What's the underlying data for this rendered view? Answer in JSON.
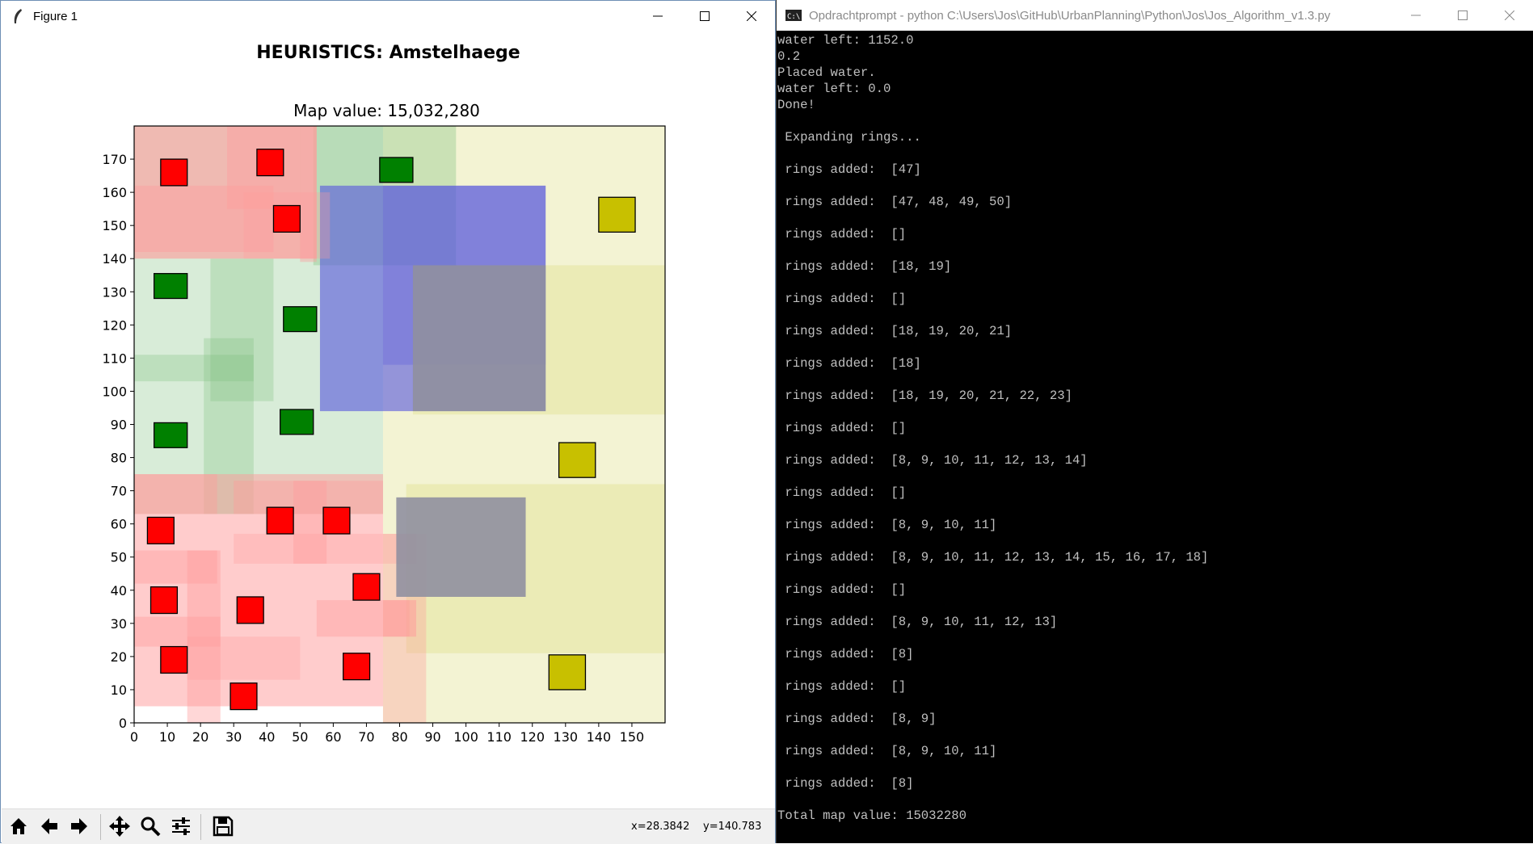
{
  "figure_window": {
    "title": "Figure 1",
    "suptitle": "HEURISTICS: Amstelhaege",
    "axes_title": "Map value: 15,032,280",
    "coords": {
      "x": "x=28.3842",
      "y": "y=140.783"
    },
    "toolbar": {
      "home_icon": "home-icon",
      "back_icon": "arrow-left-icon",
      "forward_icon": "arrow-right-icon",
      "pan_icon": "move-icon",
      "zoom_icon": "magnifier-icon",
      "config_icon": "sliders-icon",
      "save_icon": "floppy-disk-icon"
    }
  },
  "chart_data": {
    "type": "map",
    "xlim": [
      0,
      160
    ],
    "ylim": [
      0,
      180
    ],
    "xticks": [
      0,
      10,
      20,
      30,
      40,
      50,
      60,
      70,
      80,
      90,
      100,
      110,
      120,
      130,
      140,
      150
    ],
    "yticks": [
      0,
      10,
      20,
      30,
      40,
      50,
      60,
      70,
      80,
      90,
      100,
      110,
      120,
      130,
      140,
      150,
      160,
      170
    ],
    "colors": {
      "house_small": "#ff0000",
      "house_medium": "#008000",
      "house_large": "#c8c000",
      "water": "#9090a0",
      "ring_red": "#ff9a9a",
      "ring_green": "#7fc07f",
      "ring_yellow": "#dcdc80",
      "ring_blue": "#5555dd"
    },
    "rings": [
      {
        "color": "ring_yellow",
        "x": 75,
        "y": 0,
        "w": 85,
        "h": 180,
        "alpha": 0.35
      },
      {
        "color": "ring_yellow",
        "x": 82,
        "y": 21,
        "w": 78,
        "h": 51,
        "alpha": 0.35
      },
      {
        "color": "ring_yellow",
        "x": 84,
        "y": 93,
        "w": 76,
        "h": 45,
        "alpha": 0.35
      },
      {
        "color": "ring_green",
        "x": 0,
        "y": 63,
        "w": 75,
        "h": 117,
        "alpha": 0.3
      },
      {
        "color": "ring_green",
        "x": 54,
        "y": 138,
        "w": 43,
        "h": 42,
        "alpha": 0.35
      },
      {
        "color": "ring_green",
        "x": 21,
        "y": 63,
        "w": 15,
        "h": 53,
        "alpha": 0.3
      },
      {
        "color": "ring_green",
        "x": 0,
        "y": 103,
        "w": 36,
        "h": 8,
        "alpha": 0.3
      },
      {
        "color": "ring_green",
        "x": 23,
        "y": 97,
        "w": 19,
        "h": 43,
        "alpha": 0.3
      },
      {
        "color": "ring_blue",
        "x": 56,
        "y": 94,
        "w": 68,
        "h": 68,
        "alpha": 0.6
      },
      {
        "color": "ring_blue",
        "x": 75,
        "y": 108,
        "w": 49,
        "h": 54,
        "alpha": 0.3
      },
      {
        "color": "ring_red",
        "x": 0,
        "y": 140,
        "w": 55,
        "h": 40,
        "alpha": 0.6
      },
      {
        "color": "ring_red",
        "x": 0,
        "y": 5,
        "w": 75,
        "h": 70,
        "alpha": 0.5
      },
      {
        "color": "ring_red",
        "x": 28,
        "y": 155,
        "w": 22,
        "h": 25,
        "alpha": 0.4
      },
      {
        "color": "ring_red",
        "x": 50,
        "y": 139,
        "w": 5,
        "h": 41,
        "alpha": 0.4
      },
      {
        "color": "ring_red",
        "x": 0,
        "y": 142,
        "w": 42,
        "h": 20,
        "alpha": 0.4
      },
      {
        "color": "ring_red",
        "x": 33,
        "y": 140,
        "w": 26,
        "h": 20,
        "alpha": 0.3
      },
      {
        "color": "ring_red",
        "x": 0,
        "y": 63,
        "w": 25,
        "h": 12,
        "alpha": 0.4
      },
      {
        "color": "ring_red",
        "x": 30,
        "y": 63,
        "w": 45,
        "h": 10,
        "alpha": 0.4
      },
      {
        "color": "ring_red",
        "x": 48,
        "y": 48,
        "w": 10,
        "h": 25,
        "alpha": 0.4
      },
      {
        "color": "ring_red",
        "x": 0,
        "y": 42,
        "w": 25,
        "h": 10,
        "alpha": 0.4
      },
      {
        "color": "ring_red",
        "x": 16,
        "y": 0,
        "w": 10,
        "h": 52,
        "alpha": 0.4
      },
      {
        "color": "ring_red",
        "x": 0,
        "y": 23,
        "w": 26,
        "h": 9,
        "alpha": 0.4
      },
      {
        "color": "ring_red",
        "x": 16,
        "y": 13,
        "w": 34,
        "h": 13,
        "alpha": 0.3
      },
      {
        "color": "ring_red",
        "x": 55,
        "y": 26,
        "w": 28,
        "h": 11,
        "alpha": 0.4
      },
      {
        "color": "ring_red",
        "x": 30,
        "y": 48,
        "w": 55,
        "h": 9,
        "alpha": 0.3
      },
      {
        "color": "ring_red",
        "x": 75,
        "y": 0,
        "w": 13,
        "h": 57,
        "alpha": 0.35
      },
      {
        "color": "ring_red",
        "x": 75,
        "y": 26,
        "w": 10,
        "h": 11,
        "alpha": 0.5
      }
    ],
    "water": [
      {
        "x": 84,
        "y": 94,
        "w": 40,
        "h": 44
      },
      {
        "x": 79,
        "y": 38,
        "w": 39,
        "h": 30
      }
    ],
    "houses": [
      {
        "type": "house_small",
        "x": 8,
        "y": 162,
        "w": 8,
        "h": 8
      },
      {
        "type": "house_small",
        "x": 37,
        "y": 165,
        "w": 8,
        "h": 8
      },
      {
        "type": "house_small",
        "x": 42,
        "y": 148,
        "w": 8,
        "h": 8
      },
      {
        "type": "house_small",
        "x": 4,
        "y": 54,
        "w": 8,
        "h": 8
      },
      {
        "type": "house_small",
        "x": 40,
        "y": 57,
        "w": 8,
        "h": 8
      },
      {
        "type": "house_small",
        "x": 57,
        "y": 57,
        "w": 8,
        "h": 8
      },
      {
        "type": "house_small",
        "x": 5,
        "y": 33,
        "w": 8,
        "h": 8
      },
      {
        "type": "house_small",
        "x": 31,
        "y": 30,
        "w": 8,
        "h": 8
      },
      {
        "type": "house_small",
        "x": 66,
        "y": 37,
        "w": 8,
        "h": 8
      },
      {
        "type": "house_small",
        "x": 8,
        "y": 15,
        "w": 8,
        "h": 8
      },
      {
        "type": "house_small",
        "x": 63,
        "y": 13,
        "w": 8,
        "h": 8
      },
      {
        "type": "house_small",
        "x": 29,
        "y": 4,
        "w": 8,
        "h": 8
      },
      {
        "type": "house_medium",
        "x": 74,
        "y": 163,
        "w": 10,
        "h": 7.5
      },
      {
        "type": "house_medium",
        "x": 6,
        "y": 128,
        "w": 10,
        "h": 7.5
      },
      {
        "type": "house_medium",
        "x": 45,
        "y": 118,
        "w": 10,
        "h": 7.5
      },
      {
        "type": "house_medium",
        "x": 6,
        "y": 83,
        "w": 10,
        "h": 7.5
      },
      {
        "type": "house_medium",
        "x": 44,
        "y": 87,
        "w": 10,
        "h": 7.5
      },
      {
        "type": "house_large",
        "x": 140,
        "y": 148,
        "w": 11,
        "h": 10.5
      },
      {
        "type": "house_large",
        "x": 128,
        "y": 74,
        "w": 11,
        "h": 10.5
      },
      {
        "type": "house_large",
        "x": 125,
        "y": 10,
        "w": 11,
        "h": 10.5
      }
    ]
  },
  "console_window": {
    "title": "Opdrachtprompt - python  C:\\Users\\Jos\\GitHub\\UrbanPlanning\\Python\\Jos\\Jos_Algorithm_v1.3.py",
    "lines": [
      "water left: 1152.0",
      "0.2",
      "Placed water.",
      "water left: 0.0",
      "Done!",
      "",
      " Expanding rings...",
      "",
      " rings added:  [47]",
      "",
      " rings added:  [47, 48, 49, 50]",
      "",
      " rings added:  []",
      "",
      " rings added:  [18, 19]",
      "",
      " rings added:  []",
      "",
      " rings added:  [18, 19, 20, 21]",
      "",
      " rings added:  [18]",
      "",
      " rings added:  [18, 19, 20, 21, 22, 23]",
      "",
      " rings added:  []",
      "",
      " rings added:  [8, 9, 10, 11, 12, 13, 14]",
      "",
      " rings added:  []",
      "",
      " rings added:  [8, 9, 10, 11]",
      "",
      " rings added:  [8, 9, 10, 11, 12, 13, 14, 15, 16, 17, 18]",
      "",
      " rings added:  []",
      "",
      " rings added:  [8, 9, 10, 11, 12, 13]",
      "",
      " rings added:  [8]",
      "",
      " rings added:  []",
      "",
      " rings added:  [8, 9]",
      "",
      " rings added:  [8, 9, 10, 11]",
      "",
      " rings added:  [8]",
      "",
      "Total map value: 15032280"
    ]
  }
}
